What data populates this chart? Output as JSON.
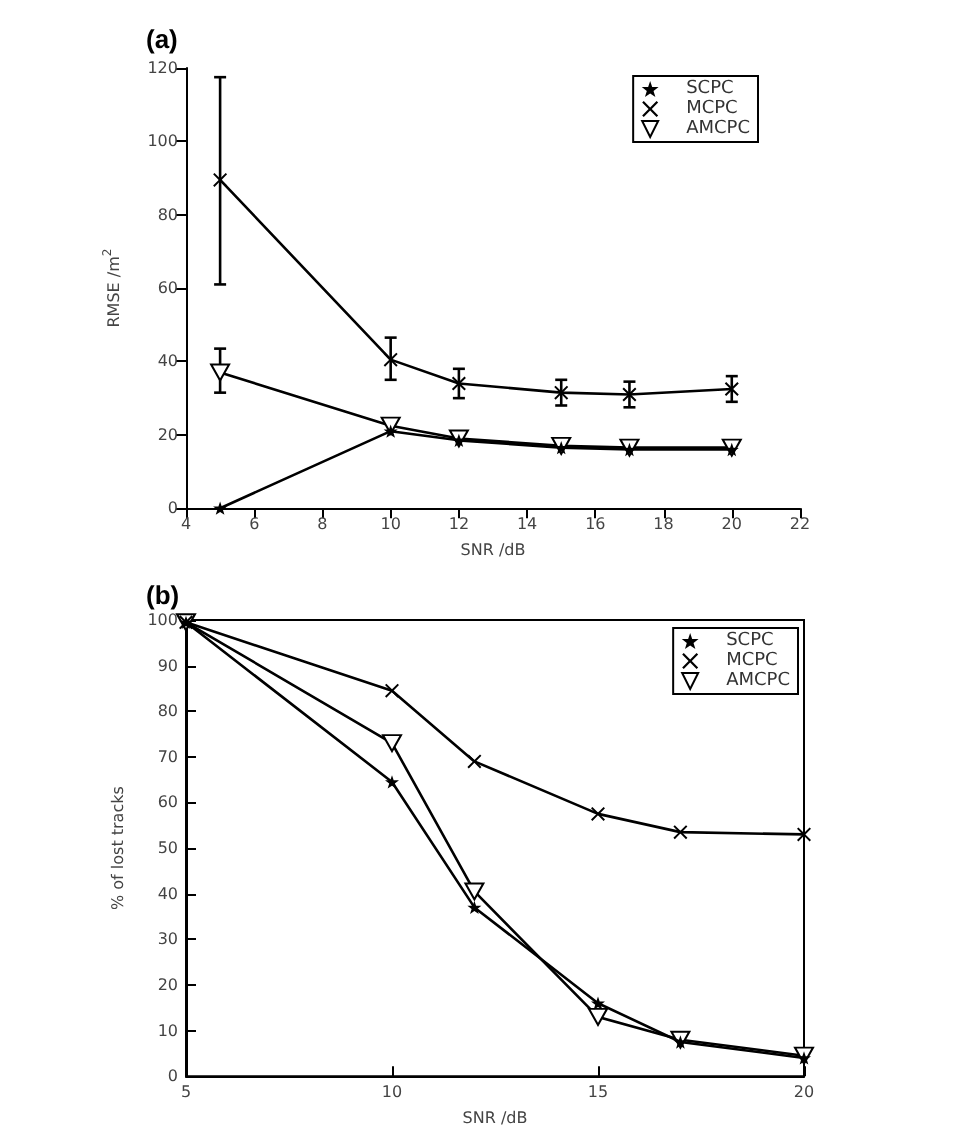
{
  "chart_data": [
    {
      "type": "line",
      "title": "(a)",
      "xlabel": "SNR /dB",
      "ylabel": "RMSE /m$^{2}$",
      "x": [
        5,
        10,
        12,
        15,
        17,
        20
      ],
      "xlim": [
        4,
        22
      ],
      "xticks": [
        4,
        6,
        8,
        10,
        12,
        14,
        16,
        18,
        20,
        22
      ],
      "ylim": [
        0,
        120
      ],
      "yticks": [
        0,
        20,
        40,
        60,
        80,
        100,
        120
      ],
      "legend": "top right",
      "series": [
        {
          "name": "SCPC",
          "color": "#000000",
          "marker": "star",
          "values": [
            0,
            21,
            18.5,
            16.5,
            16,
            16
          ]
        },
        {
          "name": "MCPC",
          "color": "#000000",
          "marker": "cross",
          "values": [
            89.5,
            40.5,
            34,
            31.5,
            31,
            32.5
          ],
          "errors": [
            [
              61,
              117.5
            ],
            [
              35,
              46.5
            ],
            [
              30,
              38
            ],
            [
              28,
              35
            ],
            [
              27.5,
              34.5
            ],
            [
              29,
              36
            ]
          ]
        },
        {
          "name": "AMCPC",
          "color": "#000000",
          "marker": "triangle",
          "values": [
            37,
            22.5,
            19,
            17,
            16.5,
            16.5
          ],
          "errors": [
            [
              31.5,
              43.5
            ],
            null,
            null,
            null,
            null,
            null
          ]
        }
      ]
    },
    {
      "type": "line",
      "title": "(b)",
      "xlabel": "SNR /dB",
      "ylabel": "% of lost tracks",
      "x": [
        5,
        10,
        12,
        15,
        17,
        20
      ],
      "xlim": [
        5,
        20
      ],
      "xticks": [
        5,
        10,
        15,
        20
      ],
      "ylim": [
        0,
        100
      ],
      "yticks": [
        0,
        10,
        20,
        30,
        40,
        50,
        60,
        70,
        80,
        90,
        100
      ],
      "legend": "top right",
      "series": [
        {
          "name": "SCPC",
          "color": "#000000",
          "marker": "star",
          "values": [
            99.5,
            64.5,
            37,
            16,
            7.5,
            4
          ]
        },
        {
          "name": "MCPC",
          "color": "#000000",
          "marker": "cross",
          "values": [
            99.5,
            84.5,
            69,
            57.5,
            53.5,
            53
          ]
        },
        {
          "name": "AMCPC",
          "color": "#000000",
          "marker": "triangle",
          "values": [
            99.5,
            73,
            40.5,
            13,
            8,
            4.5
          ]
        }
      ]
    }
  ]
}
